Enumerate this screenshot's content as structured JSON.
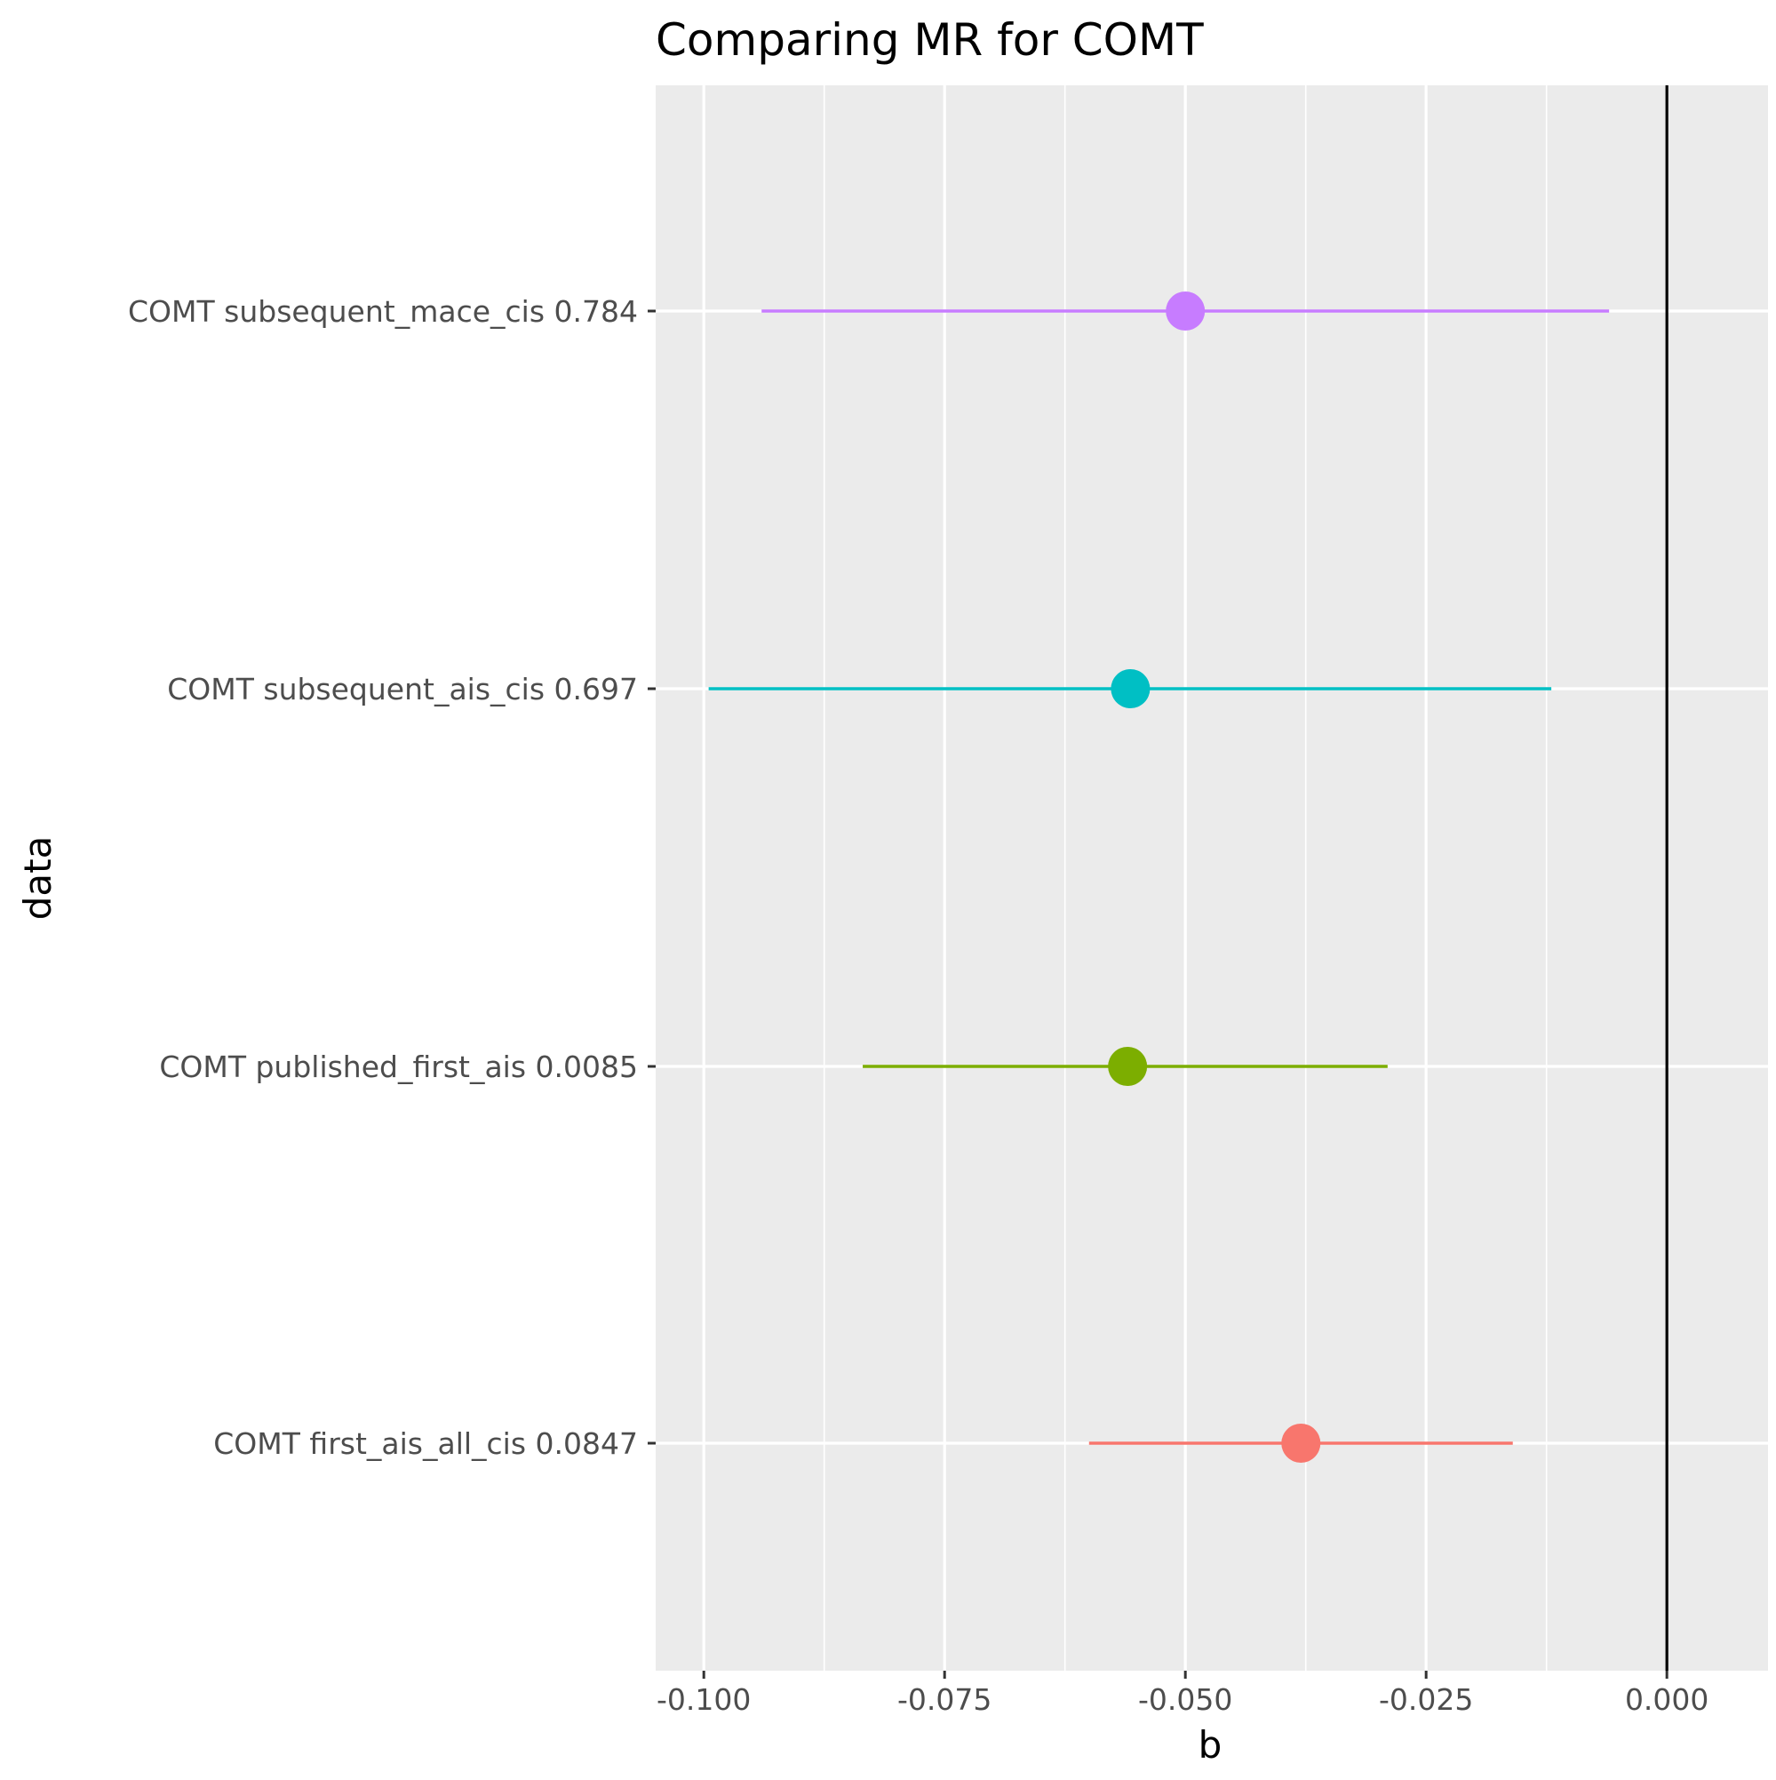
{
  "chart_data": {
    "type": "forest",
    "title": "Comparing MR for COMT",
    "xlabel": "b",
    "ylabel": "data",
    "xlim": [
      -0.105,
      0.0105
    ],
    "x_ticks": [
      -0.1,
      -0.075,
      -0.05,
      -0.025,
      0.0
    ],
    "x_tick_labels": [
      "-0.100",
      "-0.075",
      "-0.050",
      "-0.025",
      "0.000"
    ],
    "reference_line": 0.0,
    "grid": true,
    "legend": "none",
    "rows": [
      {
        "label": "COMT subsequent_mace_cis 0.784",
        "estimate": -0.05,
        "lower": -0.094,
        "upper": -0.006,
        "color": "#C77CFF"
      },
      {
        "label": "COMT subsequent_ais_cis 0.697",
        "estimate": -0.0557,
        "lower": -0.0995,
        "upper": -0.012,
        "color": "#00BFC4"
      },
      {
        "label": "COMT published_first_ais 0.0085",
        "estimate": -0.056,
        "lower": -0.0835,
        "upper": -0.029,
        "color": "#7CAE00"
      },
      {
        "label": "COMT first_ais_all_cis 0.0847",
        "estimate": -0.038,
        "lower": -0.06,
        "upper": -0.016,
        "color": "#F8766D"
      }
    ],
    "colors": {
      "panel_background": "#EBEBEB",
      "grid_major": "#FFFFFF",
      "reference_line": "#000000",
      "axis_text": "#4D4D4D",
      "title_text": "#000000"
    }
  }
}
